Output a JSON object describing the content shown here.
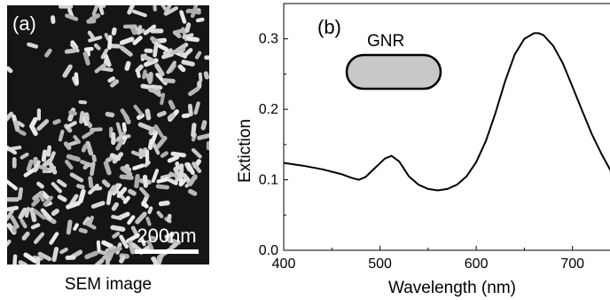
{
  "panel_a": {
    "label": "(a)",
    "scale_bar": "200nm",
    "caption": "SEM image"
  },
  "panel_b": {
    "label": "(b)",
    "inset_label": "GNR",
    "inset_color": "#c8c8c8"
  },
  "chart_data": {
    "type": "line",
    "xlabel": "Wavelength (nm)",
    "ylabel": "Extiction",
    "xlim": [
      400,
      750
    ],
    "ylim": [
      0.0,
      0.35
    ],
    "x_ticks": [
      "400",
      "500",
      "600",
      "700"
    ],
    "y_ticks": [
      "0.0",
      "0.1",
      "0.2",
      "0.3"
    ],
    "series": [
      {
        "x": [
          400,
          420,
          440,
          460,
          470,
          478,
          485,
          495,
          505,
          512,
          520,
          530,
          540,
          550,
          560,
          570,
          580,
          590,
          600,
          610,
          620,
          630,
          640,
          650,
          660,
          665,
          670,
          680,
          690,
          700,
          710,
          720,
          730,
          740,
          750
        ],
        "y": [
          0.124,
          0.12,
          0.115,
          0.108,
          0.103,
          0.1,
          0.104,
          0.117,
          0.13,
          0.134,
          0.126,
          0.105,
          0.093,
          0.087,
          0.085,
          0.087,
          0.093,
          0.105,
          0.125,
          0.155,
          0.195,
          0.24,
          0.278,
          0.3,
          0.308,
          0.308,
          0.305,
          0.29,
          0.265,
          0.232,
          0.198,
          0.165,
          0.137,
          0.112,
          0.096
        ],
        "color": "#000000"
      }
    ]
  }
}
